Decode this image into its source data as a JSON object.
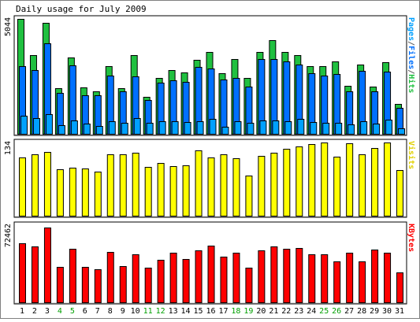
{
  "chart_data": {
    "type": "bar",
    "title": "Daily usage for July 2009",
    "categories": [
      "1",
      "2",
      "3",
      "4",
      "5",
      "6",
      "7",
      "8",
      "9",
      "10",
      "11",
      "12",
      "13",
      "14",
      "15",
      "16",
      "17",
      "18",
      "19",
      "20",
      "21",
      "22",
      "23",
      "24",
      "25",
      "26",
      "27",
      "28",
      "29",
      "30",
      "31"
    ],
    "weekend_days": [
      "4",
      "5",
      "11",
      "12",
      "18",
      "19",
      "25",
      "26"
    ],
    "grid": false,
    "panels": [
      {
        "name": "hits-files-pages",
        "max_label": "5044",
        "ylim": [
          0,
          5044
        ],
        "side_label_parts": [
          {
            "text": "Pages",
            "color": "#00a0ff"
          },
          {
            "text": "/",
            "color": "#606060"
          },
          {
            "text": "Files",
            "color": "#0070ff"
          },
          {
            "text": "/",
            "color": "#606060"
          },
          {
            "text": "Hits",
            "color": "#20c040"
          }
        ],
        "series": [
          {
            "name": "Hits",
            "color": "#20c040",
            "values": [
              5044,
              3450,
              4860,
              2000,
              3350,
              2030,
              1870,
              2980,
              2010,
              3470,
              1610,
              2470,
              2790,
              2690,
              3240,
              3610,
              2670,
              3270,
              2470,
              3600,
              4120,
              3580,
              3460,
              2960,
              2970,
              3190,
              2120,
              3050,
              2080,
              3150,
              1320
            ]
          },
          {
            "name": "Files",
            "color": "#0070ff",
            "values": [
              2970,
              2810,
              3980,
              1800,
              3000,
              1700,
              1680,
              2560,
              1860,
              2520,
              1490,
              2240,
              2350,
              2270,
              2950,
              2870,
              2380,
              2440,
              2080,
              3290,
              3270,
              3190,
              3050,
              2660,
              2560,
              2620,
              1870,
              2780,
              1880,
              2730,
              1140
            ]
          },
          {
            "name": "Pages",
            "color": "#00a0ff",
            "values": [
              780,
              680,
              880,
              370,
              600,
              450,
              350,
              540,
              480,
              680,
              480,
              560,
              560,
              530,
              540,
              650,
              300,
              560,
              480,
              590,
              590,
              570,
              640,
              520,
              480,
              500,
              400,
              570,
              460,
              610,
              250
            ]
          }
        ]
      },
      {
        "name": "visits",
        "max_label": "134",
        "ylim": [
          0,
          134
        ],
        "side_label_parts": [
          {
            "text": "Visits",
            "color": "#e0d000"
          }
        ],
        "series": [
          {
            "name": "Visits",
            "color": "#ffff00",
            "values": [
              107,
              113,
              117,
              85,
              88,
              87,
              81,
              113,
              113,
              115,
              90,
              97,
              91,
              92,
              120,
              106,
              113,
              105,
              74,
              109,
              115,
              122,
              127,
              131,
              134,
              108,
              133,
              113,
              124,
              134,
              83
            ]
          }
        ]
      },
      {
        "name": "kbytes",
        "max_label": "72462",
        "ylim": [
          0,
          72462
        ],
        "side_label_parts": [
          {
            "text": "KBytes",
            "color": "#ff0000"
          }
        ],
        "series": [
          {
            "name": "KBytes",
            "color": "#ff0000",
            "values": [
              55300,
              52500,
              70000,
              33400,
              50200,
              33500,
              31200,
              47300,
              33800,
              45000,
              32500,
              39600,
              46700,
              40800,
              48800,
              53200,
              43100,
              46400,
              32800,
              48900,
              52200,
              50600,
              51200,
              45400,
              45100,
              38400,
              46800,
              38800,
              49200,
              46900,
              28300
            ]
          }
        ]
      }
    ]
  }
}
